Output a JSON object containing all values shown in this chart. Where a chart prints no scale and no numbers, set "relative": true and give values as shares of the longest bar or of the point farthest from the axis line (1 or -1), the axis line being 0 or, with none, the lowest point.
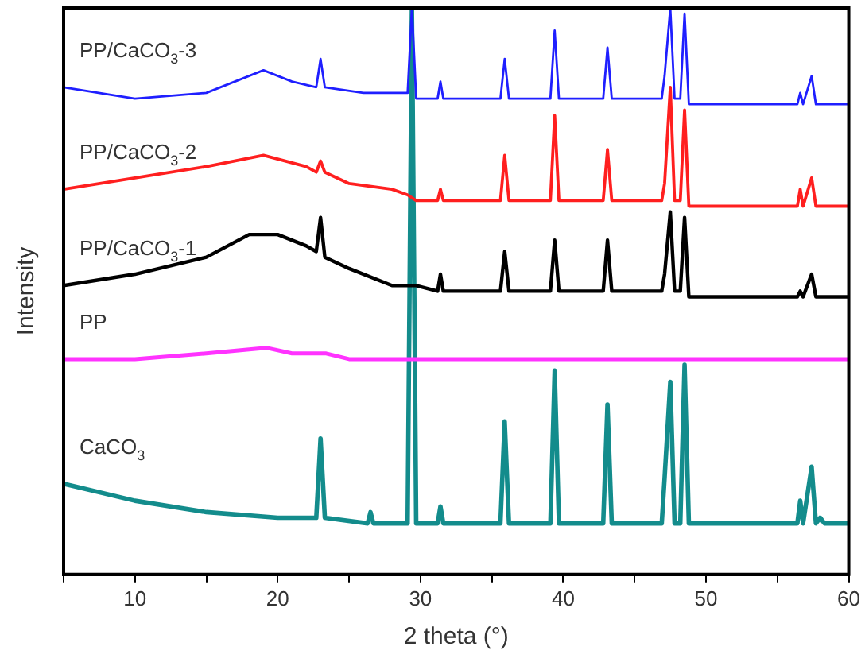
{
  "chart_data": {
    "type": "line",
    "relative": true,
    "xlabel": "2 theta (°)",
    "ylabel": "Intensity",
    "xlim": [
      5,
      60
    ],
    "xticks": [
      {
        "value": 5,
        "label": null
      },
      10,
      {
        "value": 15,
        "label": null
      },
      20,
      {
        "value": 25,
        "label": null
      },
      30,
      {
        "value": 35,
        "label": null
      },
      40,
      {
        "value": 45,
        "label": null
      },
      50,
      {
        "value": 55,
        "label": null
      },
      60
    ],
    "grid": false,
    "legend": false,
    "marker": "none",
    "line_style": "solid",
    "series": [
      {
        "name": "PP/CaCO$_{3}$-3",
        "color": "#1f1fff",
        "x": [
          5,
          10,
          15,
          19,
          21,
          22.7,
          23,
          23.3,
          26,
          29.1,
          29.4,
          29.7,
          31.2,
          31.4,
          31.6,
          35.6,
          35.9,
          36.2,
          39.1,
          39.4,
          39.7,
          42.8,
          43.1,
          43.4,
          46.9,
          47.1,
          47.5,
          47.8,
          48.2,
          48.5,
          48.8,
          56.4,
          56.6,
          56.8,
          57.4,
          57.7,
          60
        ],
        "values": [
          0.86,
          0.84,
          0.85,
          0.89,
          0.87,
          0.86,
          0.91,
          0.86,
          0.85,
          0.85,
          1.0,
          0.84,
          0.84,
          0.87,
          0.84,
          0.84,
          0.91,
          0.84,
          0.84,
          0.96,
          0.84,
          0.84,
          0.93,
          0.84,
          0.84,
          0.88,
          1.0,
          0.84,
          0.84,
          0.99,
          0.83,
          0.83,
          0.85,
          0.83,
          0.88,
          0.83,
          0.83
        ]
      },
      {
        "name": "PP/CaCO$_{3}$-2",
        "color": "#ff1f1f",
        "x": [
          5,
          10,
          15,
          19,
          22,
          22.7,
          23,
          23.3,
          25,
          28,
          29.1,
          29.4,
          29.7,
          31.2,
          31.4,
          31.6,
          35.6,
          35.9,
          36.2,
          39.1,
          39.4,
          39.7,
          42.8,
          43.1,
          43.4,
          46.9,
          47.1,
          47.5,
          47.8,
          48.2,
          48.5,
          48.8,
          56.4,
          56.6,
          56.8,
          57.4,
          57.7,
          60
        ],
        "values": [
          0.68,
          0.7,
          0.72,
          0.74,
          0.72,
          0.71,
          0.73,
          0.71,
          0.69,
          0.68,
          0.67,
          null,
          0.66,
          0.66,
          0.68,
          0.66,
          0.66,
          0.74,
          0.66,
          0.66,
          0.81,
          0.66,
          0.66,
          0.75,
          0.66,
          0.66,
          0.69,
          0.86,
          0.66,
          0.66,
          0.82,
          0.65,
          0.65,
          0.68,
          0.65,
          0.7,
          0.65,
          0.65
        ]
      },
      {
        "name": "PP/CaCO$_{3}$-1",
        "color": "#000000",
        "x": [
          5,
          10,
          15,
          18,
          20,
          22,
          22.7,
          23,
          23.3,
          25,
          28,
          29.1,
          29.4,
          29.7,
          31.2,
          31.4,
          31.6,
          35.6,
          35.9,
          36.2,
          39.1,
          39.4,
          39.7,
          42.8,
          43.1,
          43.4,
          46.9,
          47.1,
          47.5,
          47.8,
          48.2,
          48.5,
          48.8,
          56.4,
          56.6,
          56.8,
          57.4,
          57.7,
          60
        ],
        "values": [
          0.51,
          0.53,
          0.56,
          0.6,
          0.6,
          0.58,
          0.57,
          0.63,
          0.56,
          0.54,
          0.51,
          0.51,
          null,
          0.51,
          0.5,
          0.53,
          0.5,
          0.5,
          0.57,
          0.5,
          0.5,
          0.59,
          0.5,
          0.5,
          0.59,
          0.5,
          0.5,
          0.53,
          0.64,
          0.5,
          0.5,
          0.63,
          0.49,
          0.49,
          0.5,
          0.49,
          0.53,
          0.49,
          0.49
        ]
      },
      {
        "name": "PP",
        "color": "#ff33ff",
        "x": [
          5,
          10,
          15,
          19.2,
          21,
          23.4,
          25,
          30,
          60
        ],
        "values": [
          0.38,
          0.38,
          0.39,
          0.4,
          0.39,
          0.39,
          0.38,
          0.38,
          0.38
        ]
      },
      {
        "name": "CaCO$_{3}$",
        "color": "#138c8c",
        "x": [
          5,
          10,
          15,
          20,
          22.7,
          23,
          23.3,
          26.3,
          26.5,
          26.7,
          29.1,
          29.4,
          29.7,
          31.2,
          31.4,
          31.6,
          35.6,
          35.9,
          36.2,
          39.1,
          39.4,
          39.7,
          42.8,
          43.1,
          43.4,
          46.9,
          47.1,
          47.5,
          47.8,
          48.2,
          48.5,
          48.8,
          56.4,
          56.6,
          56.8,
          57.4,
          57.7,
          58,
          58.3,
          60
        ],
        "values": [
          0.16,
          0.13,
          0.11,
          0.1,
          0.1,
          0.24,
          0.1,
          0.09,
          0.11,
          0.09,
          0.09,
          1.0,
          0.09,
          0.09,
          0.12,
          0.09,
          0.09,
          0.27,
          0.09,
          0.09,
          0.36,
          0.09,
          0.09,
          0.3,
          0.09,
          0.09,
          0.17,
          0.34,
          0.09,
          0.09,
          0.37,
          0.09,
          0.09,
          0.13,
          0.09,
          0.19,
          0.09,
          0.1,
          0.09,
          0.09
        ]
      }
    ]
  }
}
